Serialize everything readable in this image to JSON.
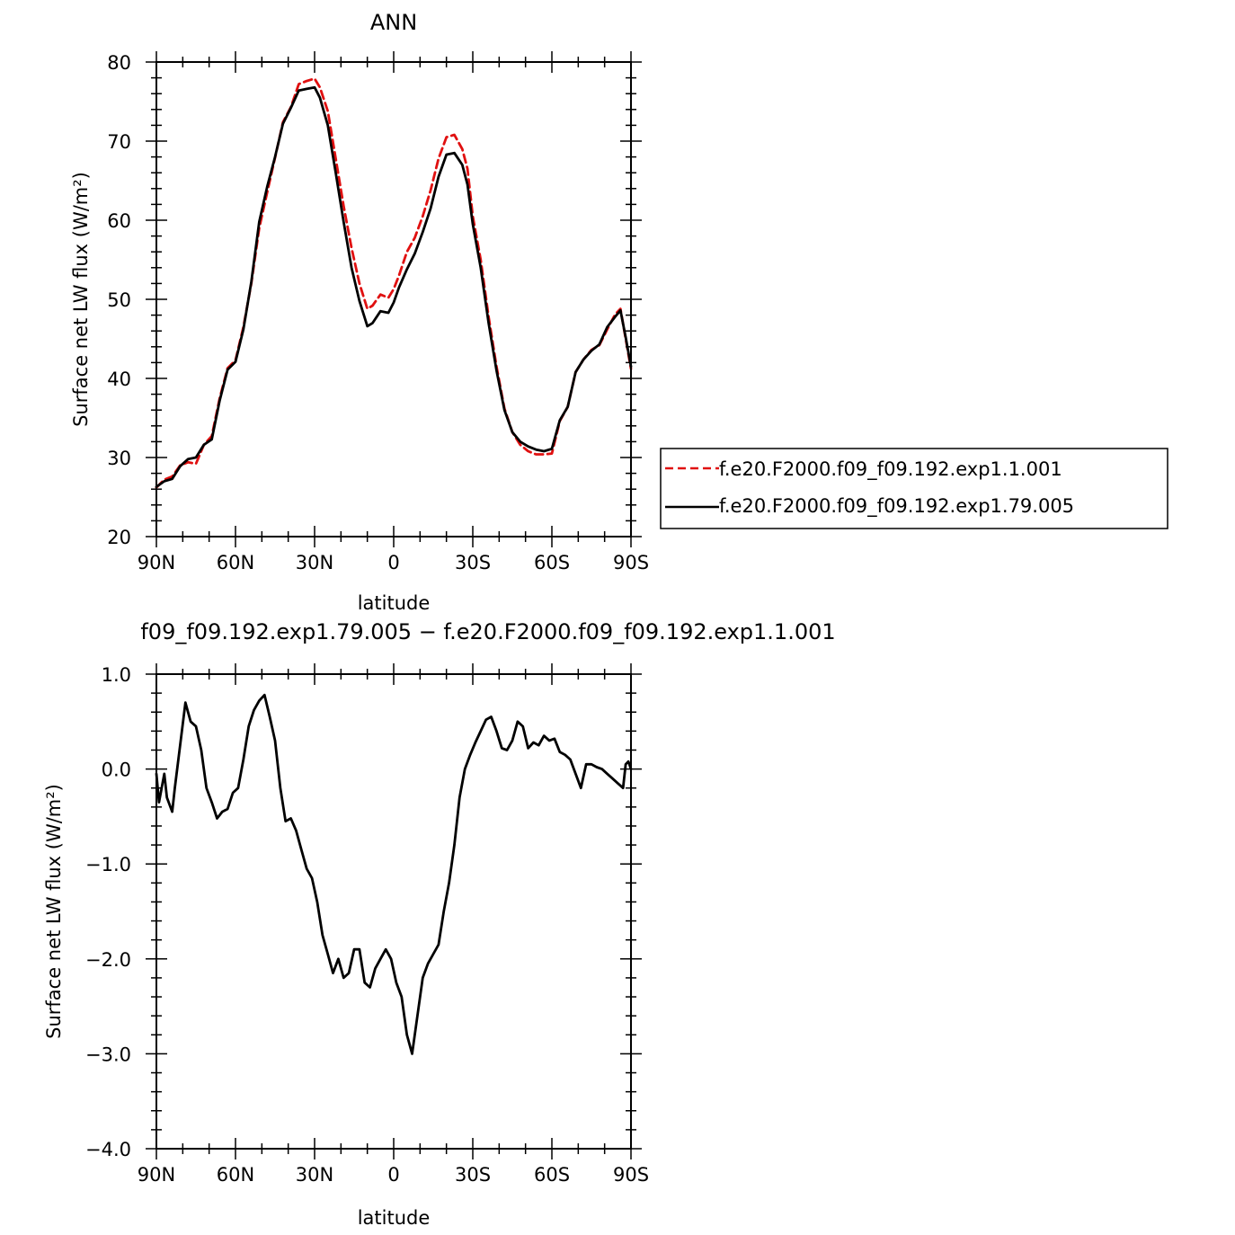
{
  "chart_data": [
    {
      "type": "line",
      "title": "ANN",
      "xlabel": "latitude",
      "ylabel": "Surface net LW flux (W/m²)",
      "xlim": [
        90,
        -90
      ],
      "ylim": [
        20,
        80
      ],
      "xticks": [
        90,
        60,
        30,
        0,
        -30,
        -60,
        -90
      ],
      "xticklabels": [
        "90N",
        "60N",
        "30N",
        "0",
        "30S",
        "60S",
        "90S"
      ],
      "yticks": [
        20,
        30,
        40,
        50,
        60,
        70,
        80
      ],
      "yticklabels": [
        "20",
        "30",
        "40",
        "50",
        "60",
        "70",
        "80"
      ],
      "legend": {
        "position": "right-middle"
      },
      "series": [
        {
          "name": "f.e20.F2000.f09_f09.192.exp1.1.001",
          "color": "#e01010",
          "style": "dashed",
          "x": [
            90,
            87,
            84,
            81,
            78,
            75,
            72,
            69,
            66,
            63,
            60,
            57,
            54,
            51,
            48,
            45,
            42,
            39,
            36,
            33,
            30,
            28,
            25,
            22,
            19,
            16,
            13,
            10,
            8,
            5,
            2,
            0,
            -2,
            -5,
            -8,
            -11,
            -14,
            -17,
            -20,
            -23,
            -26,
            -28,
            -30,
            -33,
            -36,
            -39,
            -42,
            -45,
            -48,
            -51,
            -54,
            -57,
            -60,
            -63,
            -66,
            -69,
            -72,
            -75,
            -78,
            -81,
            -84,
            -86,
            -88,
            -90
          ],
          "y": [
            26.2,
            27.2,
            27.6,
            29.0,
            29.4,
            29.2,
            31.6,
            32.7,
            37.5,
            41.3,
            42.3,
            46.5,
            52.0,
            59.0,
            63.5,
            67.9,
            72.4,
            74.3,
            77.2,
            77.6,
            77.9,
            76.8,
            73.8,
            67.8,
            61.8,
            56.5,
            52.0,
            48.8,
            49.2,
            50.6,
            50.2,
            51.3,
            53.0,
            56.0,
            57.8,
            60.5,
            63.8,
            67.8,
            70.5,
            70.8,
            69.0,
            66.5,
            60.5,
            55.0,
            47.8,
            41.5,
            36.2,
            33.2,
            31.6,
            30.8,
            30.4,
            30.4,
            30.5,
            34.6,
            36.4,
            40.8,
            42.4,
            43.6,
            44.2,
            46.2,
            48.1,
            48.8,
            45.0,
            41.2
          ]
        },
        {
          "name": "f.e20.F2000.f09_f09.192.exp1.79.005",
          "color": "#000000",
          "style": "solid",
          "x": [
            90,
            87,
            84,
            81,
            78,
            75,
            72,
            69,
            66,
            63,
            60,
            57,
            54,
            51,
            48,
            45,
            42,
            39,
            36,
            33,
            30,
            28,
            25,
            22,
            19,
            16,
            13,
            10,
            8,
            5,
            2,
            0,
            -2,
            -5,
            -8,
            -11,
            -14,
            -17,
            -20,
            -23,
            -26,
            -28,
            -30,
            -33,
            -36,
            -39,
            -42,
            -45,
            -48,
            -51,
            -54,
            -57,
            -60,
            -63,
            -66,
            -69,
            -72,
            -75,
            -78,
            -81,
            -84,
            -86,
            -88,
            -90
          ],
          "y": [
            26.3,
            27.0,
            27.3,
            28.9,
            29.8,
            30.0,
            31.6,
            32.3,
            37.2,
            41.1,
            42.1,
            46.2,
            52.2,
            59.8,
            64.2,
            68.0,
            72.2,
            74.2,
            76.4,
            76.6,
            76.8,
            75.5,
            72.0,
            66.0,
            59.8,
            54.0,
            49.8,
            46.6,
            47.0,
            48.5,
            48.3,
            49.6,
            51.5,
            53.8,
            55.8,
            58.5,
            61.5,
            65.5,
            68.3,
            68.5,
            67.0,
            64.5,
            59.5,
            54.0,
            47.0,
            41.0,
            36.0,
            33.2,
            32.0,
            31.4,
            31.0,
            30.8,
            31.1,
            34.7,
            36.4,
            40.8,
            42.4,
            43.5,
            44.3,
            46.5,
            47.8,
            48.6,
            45.2,
            41.5
          ]
        }
      ]
    },
    {
      "type": "line",
      "title": "f09_f09.192.exp1.79.005 − f.e20.F2000.f09_f09.192.exp1.1.001",
      "xlabel": "latitude",
      "ylabel": "Surface net LW flux (W/m²)",
      "xlim": [
        90,
        -90
      ],
      "ylim": [
        -4.0,
        1.0
      ],
      "xticks": [
        90,
        60,
        30,
        0,
        -30,
        -60,
        -90
      ],
      "xticklabels": [
        "90N",
        "60N",
        "30N",
        "0",
        "30S",
        "60S",
        "90S"
      ],
      "yticks": [
        -4,
        -3,
        -2,
        -1,
        0,
        1
      ],
      "yticklabels": [
        "−4.0",
        "−3.0",
        "−2.0",
        "−1.0",
        "0.0",
        "1.0"
      ],
      "series": [
        {
          "color": "#000000",
          "style": "solid",
          "x": [
            90,
            89,
            87,
            86,
            84,
            83,
            81,
            79,
            77,
            75,
            73,
            71,
            69,
            67,
            65,
            63,
            61,
            59,
            57,
            55,
            53,
            51,
            49,
            47,
            45,
            43,
            41,
            39,
            37,
            35,
            33,
            31,
            29,
            27,
            25,
            23,
            21,
            19,
            17,
            15,
            13,
            11,
            9,
            7,
            5,
            3,
            1,
            -1,
            -3,
            -5,
            -7,
            -9,
            -11,
            -13,
            -15,
            -17,
            -19,
            -21,
            -23,
            -25,
            -27,
            -29,
            -31,
            -33,
            -35,
            -37,
            -39,
            -41,
            -43,
            -45,
            -47,
            -49,
            -51,
            -53,
            -55,
            -57,
            -59,
            -61,
            -63,
            -65,
            -67,
            -69,
            -71,
            -73,
            -75,
            -77,
            -79,
            -81,
            -83,
            -85,
            -87,
            -88,
            -89,
            -90
          ],
          "y": [
            -0.05,
            -0.35,
            -0.05,
            -0.3,
            -0.45,
            -0.2,
            0.25,
            0.7,
            0.5,
            0.45,
            0.2,
            -0.2,
            -0.35,
            -0.52,
            -0.45,
            -0.42,
            -0.25,
            -0.2,
            0.1,
            0.45,
            0.62,
            0.72,
            0.78,
            0.55,
            0.3,
            -0.2,
            -0.55,
            -0.52,
            -0.65,
            -0.85,
            -1.05,
            -1.15,
            -1.4,
            -1.75,
            -1.95,
            -2.15,
            -2.0,
            -2.2,
            -2.15,
            -1.9,
            -1.9,
            -2.25,
            -2.3,
            -2.1,
            -2.0,
            -1.9,
            -2.0,
            -2.25,
            -2.4,
            -2.8,
            -3.0,
            -2.6,
            -2.2,
            -2.05,
            -1.95,
            -1.85,
            -1.5,
            -1.2,
            -0.8,
            -0.3,
            0.0,
            0.15,
            0.28,
            0.4,
            0.52,
            0.55,
            0.4,
            0.22,
            0.2,
            0.3,
            0.5,
            0.45,
            0.22,
            0.28,
            0.25,
            0.35,
            0.3,
            0.32,
            0.18,
            0.15,
            0.1,
            -0.05,
            -0.2,
            0.05,
            0.05,
            0.02,
            0.0,
            -0.05,
            -0.1,
            -0.15,
            -0.2,
            0.05,
            0.08,
            0.0
          ]
        }
      ]
    }
  ]
}
